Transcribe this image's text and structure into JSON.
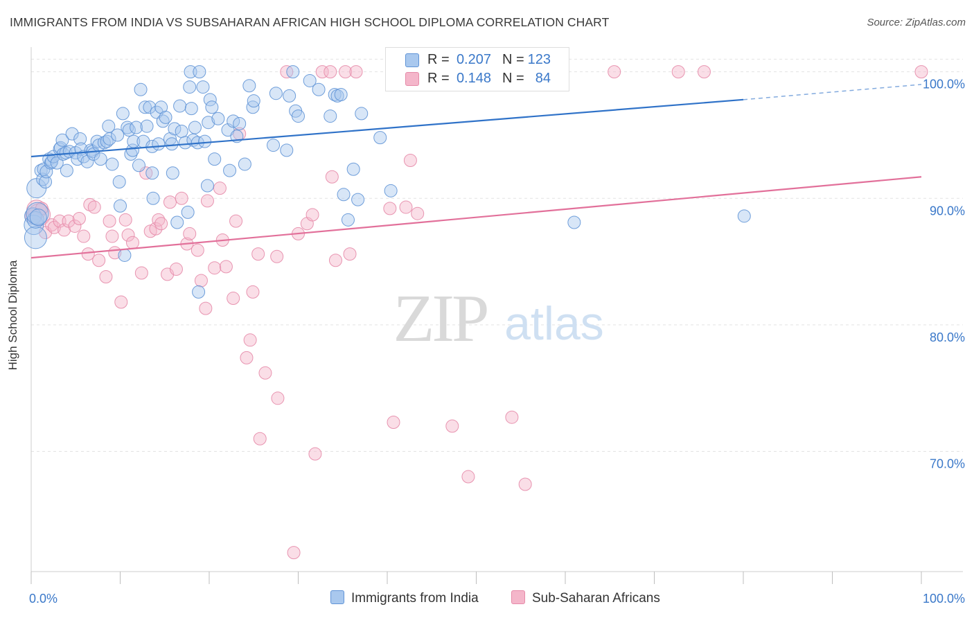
{
  "title": "IMMIGRANTS FROM INDIA VS SUBSAHARAN AFRICAN HIGH SCHOOL DIPLOMA CORRELATION CHART",
  "source": "Source: ZipAtlas.com",
  "watermark": {
    "zip": "ZIP",
    "atlas": "atlas"
  },
  "colors": {
    "blue_fill": "#a9c8ee",
    "blue_stroke": "#5f93d6",
    "blue_line": "#2f72c8",
    "pink_fill": "#f4b6ca",
    "pink_stroke": "#e68aa8",
    "pink_line": "#e2709a",
    "axis_text": "#3a78c9",
    "grid": "#e3e3e3"
  },
  "legend_top": {
    "rows": [
      {
        "r_label": "R =",
        "r_value": "0.207",
        "n_label": "N =",
        "n_value": "123"
      },
      {
        "r_label": "R =",
        "r_value": "0.148",
        "n_label": "N =",
        "n_value": "84"
      }
    ]
  },
  "legend_bottom": {
    "series1": "Immigrants from India",
    "series2": "Sub-Saharan Africans"
  },
  "chart_data": {
    "type": "scatter",
    "title": "IMMIGRANTS FROM INDIA VS SUBSAHARAN AFRICAN HIGH SCHOOL DIPLOMA CORRELATION CHART",
    "xlabel": "",
    "ylabel": "High School Diploma",
    "xlim": [
      0,
      100
    ],
    "ylim": [
      60.5,
      102.5
    ],
    "x_tick_labels": [
      "0.0%",
      "100.0%"
    ],
    "y_ticks": [
      70,
      80,
      90,
      100
    ],
    "y_tick_labels": [
      "70.0%",
      "80.0%",
      "90.0%",
      "100.0%"
    ],
    "grid": true,
    "legend_position": "top-center",
    "series": [
      {
        "name": "Immigrants from India",
        "R": 0.207,
        "N": 123,
        "trend": {
          "x0": 0,
          "y0": 93.3,
          "x1": 80,
          "y1": 97.8,
          "dashed_to": [
            100,
            99.0
          ]
        },
        "points": [
          [
            0.2,
            88.6
          ],
          [
            0.3,
            87.9
          ],
          [
            0.5,
            86.9
          ],
          [
            0.5,
            88.3
          ],
          [
            0.6,
            90.8
          ],
          [
            0.7,
            88.8
          ],
          [
            0.8,
            88.5
          ],
          [
            1.1,
            92.2
          ],
          [
            1.3,
            91.5
          ],
          [
            1.4,
            92.3
          ],
          [
            1.6,
            91.3
          ],
          [
            1.7,
            92.1
          ],
          [
            2.0,
            93.1
          ],
          [
            2.2,
            92.8
          ],
          [
            2.3,
            92.9
          ],
          [
            2.5,
            93.3
          ],
          [
            2.9,
            92.8
          ],
          [
            3.2,
            93.9
          ],
          [
            3.3,
            94.0
          ],
          [
            3.5,
            94.6
          ],
          [
            3.6,
            93.5
          ],
          [
            3.9,
            93.6
          ],
          [
            4.0,
            92.2
          ],
          [
            4.3,
            93.7
          ],
          [
            4.6,
            95.1
          ],
          [
            5.0,
            93.6
          ],
          [
            5.2,
            93.1
          ],
          [
            5.5,
            94.7
          ],
          [
            5.6,
            93.9
          ],
          [
            5.9,
            93.3
          ],
          [
            6.3,
            92.9
          ],
          [
            6.7,
            93.8
          ],
          [
            6.9,
            93.7
          ],
          [
            7.0,
            93.5
          ],
          [
            7.4,
            94.5
          ],
          [
            7.6,
            94.2
          ],
          [
            7.8,
            93.1
          ],
          [
            8.2,
            94.4
          ],
          [
            8.5,
            94.5
          ],
          [
            8.7,
            95.7
          ],
          [
            8.8,
            94.7
          ],
          [
            9.1,
            92.7
          ],
          [
            9.7,
            95.0
          ],
          [
            9.9,
            91.3
          ],
          [
            10.0,
            89.4
          ],
          [
            10.3,
            96.7
          ],
          [
            10.8,
            95.6
          ],
          [
            11.0,
            95.4
          ],
          [
            11.2,
            93.5
          ],
          [
            11.4,
            93.8
          ],
          [
            11.5,
            94.5
          ],
          [
            11.8,
            95.6
          ],
          [
            12.1,
            92.6
          ],
          [
            12.3,
            98.6
          ],
          [
            12.6,
            94.5
          ],
          [
            12.8,
            97.2
          ],
          [
            13.0,
            95.7
          ],
          [
            13.3,
            97.2
          ],
          [
            13.6,
            94.1
          ],
          [
            13.6,
            92.0
          ],
          [
            13.7,
            90.0
          ],
          [
            14.1,
            96.8
          ],
          [
            14.3,
            94.3
          ],
          [
            14.6,
            97.2
          ],
          [
            14.8,
            96.1
          ],
          [
            15.1,
            96.4
          ],
          [
            15.6,
            94.7
          ],
          [
            15.8,
            94.3
          ],
          [
            15.9,
            92.0
          ],
          [
            16.1,
            95.5
          ],
          [
            16.4,
            88.1
          ],
          [
            16.7,
            97.3
          ],
          [
            16.9,
            95.3
          ],
          [
            17.3,
            94.4
          ],
          [
            17.6,
            88.9
          ],
          [
            17.8,
            98.8
          ],
          [
            17.9,
            100.0
          ],
          [
            18.0,
            97.1
          ],
          [
            18.2,
            94.6
          ],
          [
            18.4,
            95.6
          ],
          [
            18.7,
            94.4
          ],
          [
            18.9,
            100.0
          ],
          [
            19.3,
            98.8
          ],
          [
            19.5,
            94.5
          ],
          [
            19.8,
            91.0
          ],
          [
            19.9,
            96.0
          ],
          [
            20.1,
            97.8
          ],
          [
            20.3,
            97.2
          ],
          [
            20.6,
            93.1
          ],
          [
            21.0,
            96.3
          ],
          [
            22.1,
            95.4
          ],
          [
            22.3,
            92.2
          ],
          [
            22.7,
            96.1
          ],
          [
            23.1,
            94.9
          ],
          [
            23.4,
            95.9
          ],
          [
            24.0,
            92.7
          ],
          [
            24.5,
            98.9
          ],
          [
            24.9,
            97.2
          ],
          [
            25.0,
            97.7
          ],
          [
            27.2,
            94.2
          ],
          [
            27.5,
            98.3
          ],
          [
            28.7,
            93.8
          ],
          [
            29.0,
            98.1
          ],
          [
            29.4,
            100.0
          ],
          [
            29.7,
            96.9
          ],
          [
            30.0,
            96.5
          ],
          [
            31.3,
            99.3
          ],
          [
            32.3,
            98.6
          ],
          [
            33.6,
            96.5
          ],
          [
            34.1,
            98.2
          ],
          [
            34.4,
            98.1
          ],
          [
            34.8,
            98.2
          ],
          [
            35.1,
            90.3
          ],
          [
            35.6,
            88.3
          ],
          [
            36.2,
            92.3
          ],
          [
            36.7,
            89.9
          ],
          [
            37.1,
            96.7
          ],
          [
            39.2,
            94.8
          ],
          [
            40.4,
            90.6
          ],
          [
            61.0,
            88.1
          ],
          [
            80.1,
            88.6
          ],
          [
            10.5,
            85.5
          ],
          [
            18.8,
            82.6
          ]
        ]
      },
      {
        "name": "Sub-Saharan Africans",
        "R": 0.148,
        "N": 84,
        "trend": {
          "x0": 0,
          "y0": 85.3,
          "x1": 100,
          "y1": 91.7
        },
        "points": [
          [
            0.3,
            88.6
          ],
          [
            0.6,
            89.1
          ],
          [
            0.9,
            88.7
          ],
          [
            1.2,
            89.2
          ],
          [
            1.6,
            87.3
          ],
          [
            2.3,
            87.9
          ],
          [
            2.6,
            87.7
          ],
          [
            3.2,
            88.2
          ],
          [
            3.7,
            87.5
          ],
          [
            4.2,
            88.2
          ],
          [
            4.9,
            87.8
          ],
          [
            5.4,
            88.4
          ],
          [
            5.9,
            87.0
          ],
          [
            6.4,
            85.6
          ],
          [
            6.6,
            89.5
          ],
          [
            7.1,
            89.3
          ],
          [
            7.6,
            85.1
          ],
          [
            8.4,
            83.8
          ],
          [
            8.8,
            88.2
          ],
          [
            9.1,
            87.0
          ],
          [
            9.4,
            85.7
          ],
          [
            10.1,
            81.8
          ],
          [
            10.6,
            88.3
          ],
          [
            10.9,
            87.1
          ],
          [
            11.4,
            86.5
          ],
          [
            12.4,
            84.1
          ],
          [
            12.9,
            92.0
          ],
          [
            13.4,
            87.4
          ],
          [
            14.0,
            87.6
          ],
          [
            14.3,
            88.3
          ],
          [
            14.6,
            88.0
          ],
          [
            15.3,
            84.0
          ],
          [
            15.6,
            89.7
          ],
          [
            16.3,
            84.4
          ],
          [
            16.9,
            90.0
          ],
          [
            17.5,
            86.4
          ],
          [
            17.8,
            87.2
          ],
          [
            18.7,
            85.9
          ],
          [
            19.1,
            83.5
          ],
          [
            19.6,
            81.3
          ],
          [
            19.8,
            89.8
          ],
          [
            20.6,
            84.5
          ],
          [
            21.2,
            90.8
          ],
          [
            21.5,
            86.7
          ],
          [
            21.9,
            84.6
          ],
          [
            22.7,
            82.1
          ],
          [
            23.0,
            88.2
          ],
          [
            23.4,
            95.1
          ],
          [
            24.2,
            77.4
          ],
          [
            24.6,
            78.8
          ],
          [
            24.9,
            82.6
          ],
          [
            25.5,
            85.6
          ],
          [
            25.7,
            71.0
          ],
          [
            26.3,
            76.2
          ],
          [
            27.6,
            85.4
          ],
          [
            27.7,
            74.2
          ],
          [
            28.7,
            100.0
          ],
          [
            29.5,
            62.0
          ],
          [
            30.0,
            87.2
          ],
          [
            31.0,
            88.0
          ],
          [
            31.6,
            88.7
          ],
          [
            31.9,
            69.8
          ],
          [
            32.7,
            100.0
          ],
          [
            33.6,
            100.0
          ],
          [
            33.8,
            91.7
          ],
          [
            34.2,
            85.1
          ],
          [
            35.3,
            100.0
          ],
          [
            35.8,
            85.6
          ],
          [
            36.5,
            100.0
          ],
          [
            40.3,
            89.2
          ],
          [
            40.7,
            72.3
          ],
          [
            42.1,
            89.3
          ],
          [
            42.6,
            93.0
          ],
          [
            43.4,
            88.8
          ],
          [
            47.3,
            72.0
          ],
          [
            49.1,
            68.0
          ],
          [
            51.1,
            100.0
          ],
          [
            54.0,
            72.7
          ],
          [
            55.5,
            67.4
          ],
          [
            65.5,
            100.0
          ],
          [
            72.7,
            100.0
          ],
          [
            75.6,
            100.0
          ],
          [
            100.0,
            100.0
          ],
          [
            57.0,
            99.2
          ]
        ]
      }
    ]
  }
}
